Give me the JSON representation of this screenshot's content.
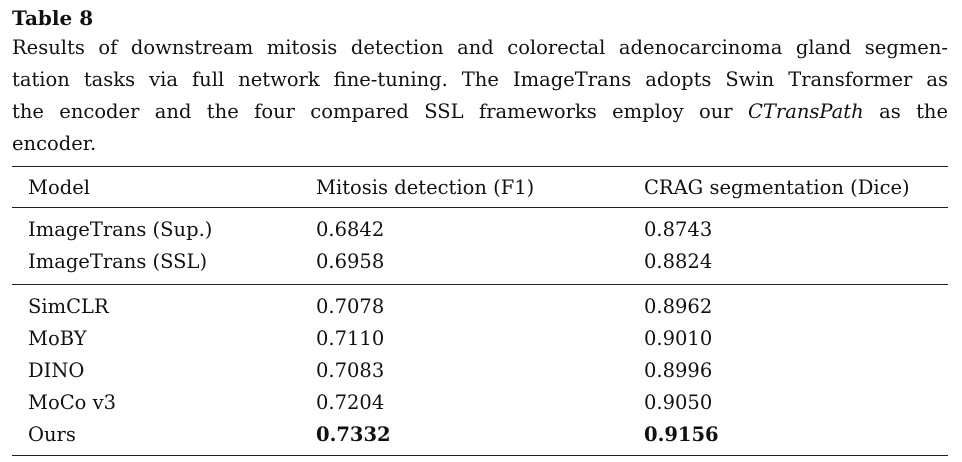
{
  "table_label": "Table 8",
  "caption": {
    "lines": [
      "Results of downstream mitosis detection and colorectal adenocarcinoma gland segmen-",
      "tation tasks via full network fine-tuning. The ImageTrans adopts Swin Transformer as",
      "the encoder and the four compared SSL frameworks employ our "
    ],
    "italic": "CTransPath",
    "line3_tail": " as the",
    "line4": "encoder."
  },
  "headers": [
    "Model",
    "Mitosis detection (F1)",
    "CRAG segmentation (Dice)"
  ],
  "group1": [
    {
      "model": "ImageTrans (Sup.)",
      "f1": "0.6842",
      "dice": "0.8743"
    },
    {
      "model": "ImageTrans (SSL)",
      "f1": "0.6958",
      "dice": "0.8824"
    }
  ],
  "group2": [
    {
      "model": "SimCLR",
      "f1": "0.7078",
      "dice": "0.8962"
    },
    {
      "model": "MoBY",
      "f1": "0.7110",
      "dice": "0.9010"
    },
    {
      "model": "DINO",
      "f1": "0.7083",
      "dice": "0.8996"
    },
    {
      "model": "MoCo v3",
      "f1": "0.7204",
      "dice": "0.9050"
    },
    {
      "model": "Ours",
      "f1": "0.7332",
      "dice": "0.9156",
      "bold_values": true
    }
  ]
}
